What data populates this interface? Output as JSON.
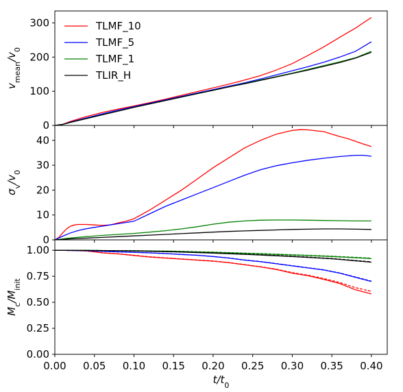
{
  "chart_data": [
    {
      "type": "line",
      "panel": "top",
      "ylabel_main": "v",
      "ylabel_sub": "mean",
      "ylabel_tail": "/v",
      "ylabel_tail_sub": "0",
      "xlim": [
        0.0,
        0.42
      ],
      "ylim": [
        0,
        335
      ],
      "yticks": [
        0,
        100,
        200,
        300
      ],
      "ytick_labels": [
        "0",
        "100",
        "200",
        "300"
      ],
      "legend": {
        "position": "upper-left",
        "entries": [
          {
            "name": "TLMF_10",
            "color": "#ff0000"
          },
          {
            "name": "TLMF_5",
            "color": "#0000ff"
          },
          {
            "name": "TLMF_1",
            "color": "#008000"
          },
          {
            "name": "TLIR_H",
            "color": "#000000"
          }
        ]
      },
      "series": [
        {
          "name": "TLMF_10",
          "color": "#ff0000",
          "x": [
            0.0,
            0.01,
            0.02,
            0.04,
            0.06,
            0.08,
            0.1,
            0.12,
            0.14,
            0.16,
            0.18,
            0.2,
            0.22,
            0.24,
            0.26,
            0.28,
            0.3,
            0.32,
            0.34,
            0.36,
            0.38,
            0.4
          ],
          "y": [
            0,
            3,
            12,
            26,
            38,
            48,
            57,
            67,
            77,
            88,
            99,
            110,
            121,
            133,
            146,
            162,
            181,
            205,
            230,
            258,
            285,
            316
          ]
        },
        {
          "name": "TLMF_5",
          "color": "#0000ff",
          "x": [
            0.0,
            0.01,
            0.02,
            0.04,
            0.06,
            0.08,
            0.1,
            0.12,
            0.14,
            0.16,
            0.18,
            0.2,
            0.22,
            0.24,
            0.26,
            0.28,
            0.3,
            0.32,
            0.34,
            0.36,
            0.38,
            0.4
          ],
          "y": [
            0,
            3,
            10,
            22,
            34,
            45,
            55,
            65,
            75,
            85,
            95,
            105,
            115,
            125,
            136,
            148,
            160,
            172,
            185,
            200,
            217,
            245
          ]
        },
        {
          "name": "TLMF_1",
          "color": "#008000",
          "x": [
            0.0,
            0.01,
            0.02,
            0.04,
            0.06,
            0.08,
            0.1,
            0.12,
            0.14,
            0.16,
            0.18,
            0.2,
            0.22,
            0.24,
            0.26,
            0.28,
            0.3,
            0.32,
            0.34,
            0.36,
            0.38,
            0.4
          ],
          "y": [
            0,
            3,
            9,
            20,
            31,
            42,
            53,
            63,
            73,
            83,
            93,
            103,
            113,
            123,
            133,
            143,
            153,
            164,
            175,
            186,
            198,
            217
          ]
        },
        {
          "name": "TLIR_H",
          "color": "#000000",
          "x": [
            0.0,
            0.01,
            0.02,
            0.04,
            0.06,
            0.08,
            0.1,
            0.12,
            0.14,
            0.16,
            0.18,
            0.2,
            0.22,
            0.24,
            0.26,
            0.28,
            0.3,
            0.32,
            0.34,
            0.36,
            0.38,
            0.4
          ],
          "y": [
            0,
            3,
            9,
            20,
            31,
            42,
            53,
            63,
            73,
            83,
            93,
            103,
            113,
            122,
            132,
            142,
            152,
            162,
            173,
            184,
            197,
            214
          ]
        }
      ]
    },
    {
      "type": "line",
      "panel": "middle",
      "ylabel_main": "σ",
      "ylabel_sub": "v",
      "ylabel_tail": "/v",
      "ylabel_tail_sub": "0",
      "xlim": [
        0.0,
        0.42
      ],
      "ylim": [
        0,
        46
      ],
      "yticks": [
        0,
        10,
        20,
        30,
        40
      ],
      "ytick_labels": [
        "0",
        "10",
        "20",
        "30",
        "40"
      ],
      "series": [
        {
          "name": "TLMF_10",
          "color": "#ff0000",
          "x": [
            0.0,
            0.005,
            0.01,
            0.015,
            0.02,
            0.025,
            0.03,
            0.04,
            0.05,
            0.06,
            0.07,
            0.08,
            0.09,
            0.1,
            0.12,
            0.14,
            0.16,
            0.18,
            0.2,
            0.22,
            0.24,
            0.26,
            0.28,
            0.3,
            0.31,
            0.32,
            0.34,
            0.35,
            0.36,
            0.37,
            0.38,
            0.39,
            0.4
          ],
          "y": [
            0,
            1,
            2.8,
            4.5,
            5.5,
            6.0,
            6.2,
            6.2,
            6.0,
            5.8,
            6.0,
            6.8,
            7.5,
            8.5,
            12,
            16,
            20,
            24.5,
            29,
            33,
            37,
            40,
            42.5,
            44,
            44.3,
            44.2,
            43.5,
            42.5,
            41.5,
            40.7,
            39.6,
            38.5,
            37.5
          ]
        },
        {
          "name": "TLMF_5",
          "color": "#0000ff",
          "x": [
            0.0,
            0.01,
            0.02,
            0.03,
            0.04,
            0.05,
            0.06,
            0.07,
            0.08,
            0.09,
            0.1,
            0.12,
            0.14,
            0.16,
            0.18,
            0.2,
            0.22,
            0.24,
            0.26,
            0.28,
            0.3,
            0.32,
            0.34,
            0.36,
            0.38,
            0.39,
            0.4
          ],
          "y": [
            0,
            1.5,
            2.8,
            3.8,
            4.5,
            5.0,
            5.5,
            6.0,
            6.5,
            7.0,
            7.5,
            10.5,
            13.5,
            16,
            18.5,
            21,
            23.5,
            26,
            28.2,
            29.8,
            31,
            32,
            32.8,
            33.5,
            34.0,
            34.0,
            33.6
          ]
        },
        {
          "name": "TLMF_1",
          "color": "#008000",
          "x": [
            0.0,
            0.02,
            0.04,
            0.06,
            0.08,
            0.1,
            0.12,
            0.14,
            0.16,
            0.18,
            0.2,
            0.22,
            0.24,
            0.26,
            0.28,
            0.3,
            0.32,
            0.34,
            0.36,
            0.38,
            0.4
          ],
          "y": [
            0,
            0.8,
            1.3,
            1.8,
            2.2,
            2.6,
            3.1,
            3.7,
            4.4,
            5.3,
            6.3,
            7.1,
            7.6,
            7.9,
            8.0,
            8.0,
            7.9,
            7.8,
            7.7,
            7.6,
            7.6
          ]
        },
        {
          "name": "TLIR_H",
          "color": "#000000",
          "x": [
            0.0,
            0.02,
            0.04,
            0.06,
            0.08,
            0.1,
            0.12,
            0.14,
            0.16,
            0.18,
            0.2,
            0.22,
            0.24,
            0.26,
            0.28,
            0.3,
            0.32,
            0.34,
            0.36,
            0.38,
            0.4
          ],
          "y": [
            0,
            0.4,
            0.7,
            1.0,
            1.3,
            1.6,
            1.9,
            2.2,
            2.5,
            2.8,
            3.1,
            3.4,
            3.6,
            3.8,
            4.0,
            4.2,
            4.3,
            4.4,
            4.4,
            4.3,
            4.2
          ]
        }
      ]
    },
    {
      "type": "line",
      "panel": "bottom",
      "ylabel_main": "M",
      "ylabel_sub": "c",
      "ylabel_tail": "/M",
      "ylabel_tail_sub": "init",
      "xlabel_main": "t",
      "xlabel_tail": "/t",
      "xlabel_tail_sub": "0",
      "xlim": [
        0.0,
        0.42
      ],
      "ylim": [
        0.0,
        1.1
      ],
      "xticks": [
        0.0,
        0.05,
        0.1,
        0.15,
        0.2,
        0.25,
        0.3,
        0.35,
        0.4
      ],
      "xtick_labels": [
        "0.00",
        "0.05",
        "0.10",
        "0.15",
        "0.20",
        "0.25",
        "0.30",
        "0.35",
        "0.40"
      ],
      "yticks": [
        0.0,
        0.25,
        0.5,
        0.75,
        1.0
      ],
      "ytick_labels": [
        "0.00",
        "0.25",
        "0.50",
        "0.75",
        "1.00"
      ],
      "series": [
        {
          "name": "TLMF_10",
          "color": "#ff0000",
          "dash": false,
          "x": [
            0.0,
            0.02,
            0.04,
            0.05,
            0.06,
            0.08,
            0.1,
            0.12,
            0.14,
            0.16,
            0.18,
            0.2,
            0.22,
            0.24,
            0.26,
            0.28,
            0.3,
            0.32,
            0.34,
            0.36,
            0.38,
            0.4
          ],
          "y": [
            1.0,
            0.998,
            0.993,
            0.985,
            0.975,
            0.965,
            0.95,
            0.935,
            0.925,
            0.915,
            0.905,
            0.895,
            0.88,
            0.86,
            0.84,
            0.815,
            0.78,
            0.755,
            0.72,
            0.68,
            0.62,
            0.58
          ]
        },
        {
          "name": "TLMF_10",
          "color": "#ff0000",
          "dash": true,
          "x": [
            0.0,
            0.02,
            0.04,
            0.05,
            0.06,
            0.08,
            0.1,
            0.12,
            0.14,
            0.16,
            0.18,
            0.2,
            0.22,
            0.24,
            0.26,
            0.28,
            0.3,
            0.32,
            0.34,
            0.36,
            0.38,
            0.4
          ],
          "y": [
            1.0,
            0.998,
            0.993,
            0.985,
            0.976,
            0.966,
            0.952,
            0.937,
            0.927,
            0.917,
            0.907,
            0.897,
            0.882,
            0.862,
            0.842,
            0.818,
            0.785,
            0.76,
            0.728,
            0.69,
            0.64,
            0.605
          ]
        },
        {
          "name": "TLMF_5",
          "color": "#0000ff",
          "dash": false,
          "x": [
            0.0,
            0.02,
            0.04,
            0.06,
            0.08,
            0.1,
            0.12,
            0.14,
            0.16,
            0.18,
            0.2,
            0.22,
            0.24,
            0.26,
            0.28,
            0.3,
            0.32,
            0.34,
            0.36,
            0.38,
            0.4
          ],
          "y": [
            1.0,
            0.998,
            0.995,
            0.99,
            0.985,
            0.98,
            0.975,
            0.968,
            0.96,
            0.952,
            0.94,
            0.925,
            0.905,
            0.89,
            0.87,
            0.85,
            0.83,
            0.81,
            0.78,
            0.74,
            0.7
          ]
        },
        {
          "name": "TLMF_5",
          "color": "#0000ff",
          "dash": true,
          "x": [
            0.0,
            0.02,
            0.04,
            0.06,
            0.08,
            0.1,
            0.12,
            0.14,
            0.16,
            0.18,
            0.2,
            0.22,
            0.24,
            0.26,
            0.28,
            0.3,
            0.32,
            0.34,
            0.36,
            0.38,
            0.4
          ],
          "y": [
            1.0,
            0.998,
            0.995,
            0.99,
            0.985,
            0.98,
            0.975,
            0.968,
            0.96,
            0.952,
            0.94,
            0.926,
            0.907,
            0.892,
            0.872,
            0.852,
            0.832,
            0.812,
            0.782,
            0.743,
            0.703
          ]
        },
        {
          "name": "TLMF_1",
          "color": "#008000",
          "dash": false,
          "x": [
            0.0,
            0.05,
            0.1,
            0.15,
            0.2,
            0.25,
            0.3,
            0.35,
            0.4
          ],
          "y": [
            1.0,
            0.998,
            0.995,
            0.99,
            0.98,
            0.968,
            0.955,
            0.94,
            0.92
          ]
        },
        {
          "name": "TLMF_1",
          "color": "#008000",
          "dash": true,
          "x": [
            0.0,
            0.05,
            0.1,
            0.15,
            0.2,
            0.25,
            0.3,
            0.35,
            0.4
          ],
          "y": [
            1.0,
            0.998,
            0.996,
            0.991,
            0.982,
            0.97,
            0.957,
            0.943,
            0.924
          ]
        },
        {
          "name": "TLIR_H",
          "color": "#000000",
          "dash": false,
          "x": [
            0.0,
            0.05,
            0.1,
            0.15,
            0.2,
            0.25,
            0.3,
            0.35,
            0.4
          ],
          "y": [
            1.0,
            0.998,
            0.993,
            0.985,
            0.973,
            0.958,
            0.94,
            0.918,
            0.885
          ]
        },
        {
          "name": "TLIR_H",
          "color": "#000000",
          "dash": true,
          "x": [
            0.0,
            0.05,
            0.1,
            0.15,
            0.2,
            0.25,
            0.3,
            0.35,
            0.4
          ],
          "y": [
            1.0,
            0.998,
            0.994,
            0.986,
            0.975,
            0.96,
            0.943,
            0.921,
            0.889
          ]
        }
      ]
    }
  ]
}
